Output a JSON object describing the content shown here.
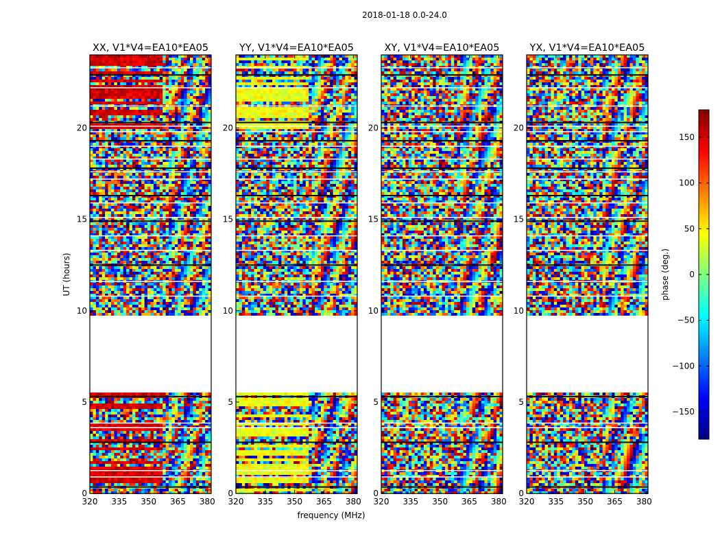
{
  "chart_data": {
    "type": "heatmap",
    "suptitle": "2018-01-18 0.0-24.0",
    "xlabel": "frequency (MHz)",
    "ylabel": "UT (hours)",
    "xlim": [
      320,
      382
    ],
    "ylim": [
      0,
      24
    ],
    "xticks": [
      "320",
      "335",
      "350",
      "365",
      "380"
    ],
    "xtick_values": [
      320,
      335,
      350,
      365,
      380
    ],
    "yticks": [
      "0",
      "5",
      "10",
      "15",
      "20"
    ],
    "ytick_values": [
      0,
      5,
      10,
      15,
      20
    ],
    "colorbar": {
      "label": "phase (deg.)",
      "range": [
        -180,
        180
      ],
      "ticks": [
        "150",
        "100",
        "50",
        "0",
        "−50",
        "−100",
        "−150"
      ],
      "tick_values": [
        150,
        100,
        50,
        0,
        -50,
        -100,
        -150
      ],
      "colormap": "jet",
      "colors": [
        "#000080",
        "#0000ff",
        "#0080ff",
        "#00ffff",
        "#80ff80",
        "#ffff00",
        "#ff8000",
        "#ff0000",
        "#800000"
      ]
    },
    "panels": [
      {
        "title": "XX, V1*V4=EA10*EA05",
        "polarization": "XX",
        "base_phase": 150
      },
      {
        "title": "YY, V1*V4=EA10*EA05",
        "polarization": "YY",
        "base_phase": 40
      },
      {
        "title": "XY, V1*V4=EA10*EA05",
        "polarization": "XY",
        "base_phase": null
      },
      {
        "title": "YX, V1*V4=EA10*EA05",
        "polarization": "YX",
        "base_phase": null
      }
    ],
    "data_gaps_ut": [
      [
        5.5,
        9.7
      ]
    ],
    "flag_lines_ut": [
      0.35,
      0.9,
      1.25,
      2.8,
      3.6,
      3.85,
      5.3,
      10.8,
      11.6,
      12.5,
      13.3,
      14.1,
      14.9,
      15.1,
      15.9,
      16.3,
      17.2,
      17.6,
      17.8,
      18.3,
      19.0,
      19.3,
      19.8,
      20.1,
      20.3,
      21.2,
      22.2,
      22.9,
      23.3
    ]
  }
}
